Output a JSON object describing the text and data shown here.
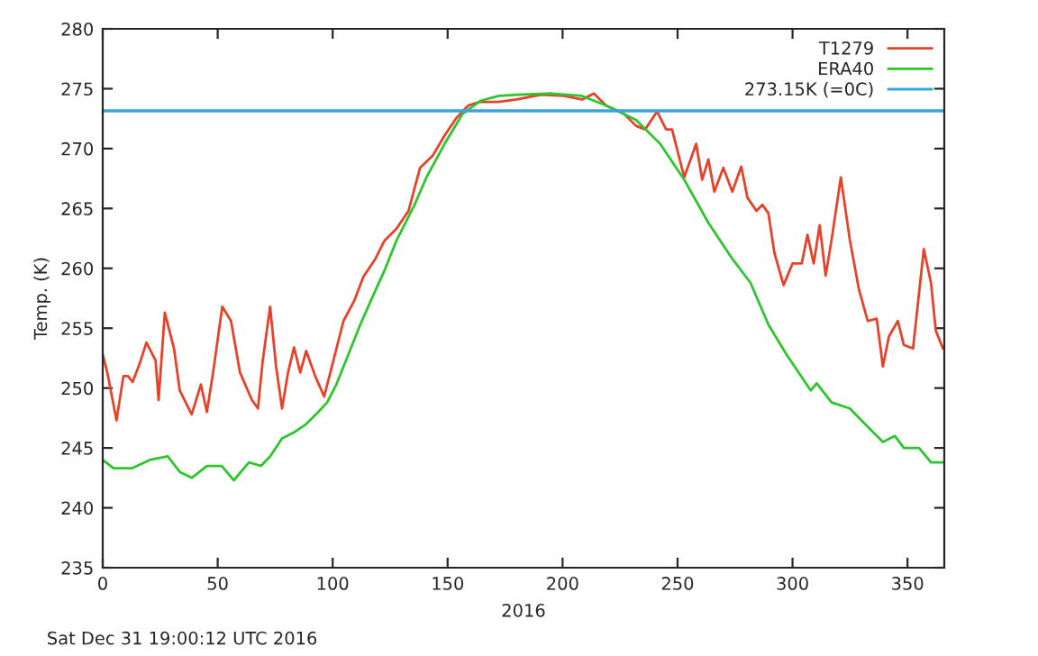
{
  "chart_data": {
    "type": "line",
    "xlabel": "2016",
    "ylabel": "Temp. (K)",
    "xlim": [
      0,
      366
    ],
    "xticks": [
      0,
      50,
      100,
      150,
      200,
      250,
      300,
      350
    ],
    "ylim": [
      235,
      280
    ],
    "yticks": [
      235,
      240,
      245,
      250,
      255,
      260,
      265,
      270,
      275,
      280
    ],
    "grid": false,
    "legend": "top right",
    "line_style": "solid",
    "marker": "none",
    "annotations": [
      "Sat Dec 31 19:00:12 UTC 2016"
    ],
    "ref_lines": [
      {
        "axis": "y",
        "value": 273.15,
        "label": "273.15K (=0C)",
        "color": "#3ba3dc",
        "line_style": "solid"
      }
    ],
    "series": [
      {
        "name": "T1279",
        "color": "#e8412a",
        "x": [
          0,
          2,
          6,
          9,
          11,
          13,
          16,
          19,
          23,
          24.3,
          27,
          31,
          33.5,
          38.7,
          42.7,
          45.3,
          48,
          52,
          55.8,
          59.7,
          64.9,
          67.5,
          69.6,
          72.8,
          75.4,
          78,
          80.6,
          83.2,
          85.9,
          88.5,
          92.4,
          96.3,
          99,
          104.7,
          109.4,
          113.4,
          118.6,
          122.5,
          127.7,
          133,
          138,
          143.5,
          148.7,
          154,
          159,
          164,
          172,
          180,
          190.6,
          200.5,
          208.4,
          213.6,
          218.8,
          226.7,
          231.9,
          235.9,
          241.1,
          245,
          247.6,
          252.9,
          258.1,
          260.7,
          263.4,
          266,
          269.9,
          273.8,
          277.7,
          280.4,
          284.3,
          286.9,
          289.5,
          292.1,
          296.1,
          300,
          304,
          306.5,
          309.2,
          311.8,
          314.4,
          317,
          321,
          324.9,
          328.8,
          332.7,
          336.6,
          339.3,
          341.9,
          345.8,
          348.4,
          352.4,
          357.1,
          360.2,
          362.3,
          365.4
        ],
        "values": [
          252.8,
          251.3,
          247.3,
          251.0,
          251.0,
          250.5,
          252.0,
          253.8,
          252.3,
          249.0,
          256.3,
          253.3,
          249.8,
          247.8,
          250.3,
          248.0,
          251.3,
          256.8,
          255.6,
          251.3,
          249.0,
          248.3,
          252.3,
          256.8,
          251.8,
          248.3,
          251.3,
          253.4,
          251.3,
          253.1,
          251.0,
          249.3,
          251.3,
          255.6,
          257.3,
          259.3,
          260.8,
          262.3,
          263.3,
          264.8,
          268.4,
          269.4,
          271.1,
          272.6,
          273.6,
          273.9,
          273.9,
          274.1,
          274.5,
          274.4,
          274.1,
          274.6,
          273.6,
          272.9,
          271.9,
          271.6,
          273.1,
          271.6,
          271.6,
          267.6,
          270.4,
          267.4,
          269.1,
          266.4,
          268.4,
          266.4,
          268.5,
          265.9,
          264.8,
          265.3,
          264.6,
          261.3,
          258.6,
          260.4,
          260.4,
          262.8,
          260.4,
          263.6,
          259.4,
          262.4,
          267.6,
          262.4,
          258.3,
          255.6,
          255.8,
          251.8,
          254.3,
          255.6,
          253.6,
          253.3,
          261.6,
          258.8,
          254.8,
          253.3
        ]
      },
      {
        "name": "ERA40",
        "color": "#2ec52e",
        "x": [
          0,
          4.7,
          12.6,
          20.4,
          28.3,
          33.5,
          38.7,
          45.3,
          51.8,
          57,
          63.6,
          68.8,
          72.8,
          78,
          83.2,
          88.5,
          93.7,
          97.6,
          101.6,
          106.8,
          112,
          117.3,
          122.5,
          127.7,
          135.6,
          140.8,
          148.7,
          156.5,
          164.4,
          172.3,
          180.1,
          195.3,
          208.4,
          218.8,
          231.9,
          242.4,
          252.9,
          263.4,
          273.8,
          281.7,
          289.5,
          297.4,
          307.9,
          310.5,
          317,
          324.9,
          331.5,
          339.3,
          344.5,
          348.4,
          355,
          360.2,
          365.4
        ],
        "values": [
          244.0,
          243.3,
          243.3,
          244.0,
          244.3,
          243.0,
          242.5,
          243.5,
          243.5,
          242.3,
          243.8,
          243.5,
          244.3,
          245.8,
          246.3,
          247.0,
          248.0,
          248.8,
          250.3,
          252.8,
          255.3,
          257.6,
          259.8,
          262.3,
          265.3,
          267.6,
          270.4,
          272.9,
          274.0,
          274.4,
          274.5,
          274.6,
          274.4,
          273.6,
          272.4,
          270.4,
          267.4,
          263.8,
          260.8,
          258.8,
          255.3,
          252.8,
          249.8,
          250.4,
          248.8,
          248.3,
          247.0,
          245.5,
          246.0,
          245.0,
          245.0,
          243.8,
          243.8
        ]
      }
    ]
  }
}
